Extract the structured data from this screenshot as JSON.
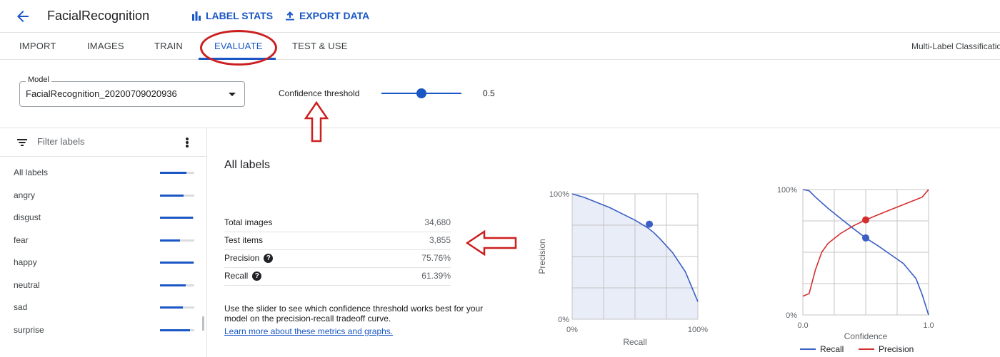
{
  "header": {
    "back_icon": "arrow-left-icon",
    "title": "FacialRecognition",
    "label_stats": "LABEL STATS",
    "export_data": "EXPORT DATA",
    "accent_color": "#1a57c4"
  },
  "tabs": {
    "items": [
      {
        "label": "IMPORT"
      },
      {
        "label": "IMAGES"
      },
      {
        "label": "TRAIN"
      },
      {
        "label": "EVALUATE",
        "active": true
      },
      {
        "label": "TEST & USE"
      }
    ],
    "right_text": "Multi-Label Classification"
  },
  "controls": {
    "model_label": "Model",
    "model_value": "FacialRecognition_20200709020936",
    "confidence_label": "Confidence threshold",
    "confidence_value": "0.5",
    "confidence_fraction": 0.5
  },
  "sidebar": {
    "filter_placeholder": "Filter labels",
    "labels": [
      {
        "name": "All labels",
        "score": 0.78
      },
      {
        "name": "angry",
        "score": 0.68
      },
      {
        "name": "disgust",
        "score": 0.96
      },
      {
        "name": "fear",
        "score": 0.58
      },
      {
        "name": "happy",
        "score": 0.98
      },
      {
        "name": "neutral",
        "score": 0.74
      },
      {
        "name": "sad",
        "score": 0.66
      },
      {
        "name": "surprise",
        "score": 0.88
      }
    ]
  },
  "main": {
    "title": "All labels",
    "metrics": [
      {
        "name": "Total images",
        "value": "34,680",
        "help": false
      },
      {
        "name": "Test items",
        "value": "3,855",
        "help": false
      },
      {
        "name": "Precision",
        "value": "75.76%",
        "help": true
      },
      {
        "name": "Recall",
        "value": "61.39%",
        "help": true
      }
    ],
    "description": "Use the slider to see which confidence threshold works best for your model on the precision-recall tradeoff curve.",
    "link": "Learn more about these metrics and graphs."
  },
  "chart_data": [
    {
      "type": "area",
      "xlabel": "Recall",
      "ylabel": "Precision",
      "x_ticks": [
        "0%",
        "100%"
      ],
      "y_ticks": [
        "0%",
        "100%"
      ],
      "xlim": [
        0,
        1
      ],
      "ylim": [
        0,
        1
      ],
      "grid": true,
      "series": [
        {
          "x": [
            0.0,
            0.1,
            0.2,
            0.3,
            0.4,
            0.5,
            0.6,
            0.65,
            0.7,
            0.8,
            0.9,
            0.95,
            1.0
          ],
          "y": [
            1.0,
            0.97,
            0.93,
            0.89,
            0.84,
            0.79,
            0.73,
            0.69,
            0.64,
            0.53,
            0.38,
            0.26,
            0.14
          ]
        }
      ],
      "marker": {
        "x": 0.614,
        "y": 0.758
      },
      "line_color": "#3b5fc4",
      "fill_color": "#e8edf8"
    },
    {
      "type": "line",
      "xlabel": "Confidence",
      "ylabel": "",
      "x_ticks": [
        "0.0",
        "1.0"
      ],
      "y_ticks": [
        "0%",
        "100%"
      ],
      "xlim": [
        0,
        1
      ],
      "ylim": [
        0,
        1
      ],
      "grid": true,
      "legend_position": "bottom",
      "series": [
        {
          "name": "Recall",
          "color": "#3b5fc4",
          "x": [
            0.0,
            0.05,
            0.1,
            0.2,
            0.3,
            0.4,
            0.5,
            0.6,
            0.7,
            0.8,
            0.9,
            0.95,
            1.0
          ],
          "y": [
            1.0,
            0.99,
            0.94,
            0.85,
            0.77,
            0.69,
            0.614,
            0.55,
            0.48,
            0.41,
            0.29,
            0.16,
            0.0
          ]
        },
        {
          "name": "Precision",
          "color": "#d32f2f",
          "x": [
            0.0,
            0.05,
            0.1,
            0.15,
            0.2,
            0.3,
            0.4,
            0.5,
            0.6,
            0.7,
            0.8,
            0.9,
            0.95,
            1.0
          ],
          "y": [
            0.15,
            0.17,
            0.36,
            0.5,
            0.57,
            0.65,
            0.71,
            0.758,
            0.8,
            0.84,
            0.88,
            0.92,
            0.94,
            1.0
          ]
        }
      ],
      "markers": [
        {
          "series": "Precision",
          "x": 0.5,
          "y": 0.758
        },
        {
          "series": "Recall",
          "x": 0.5,
          "y": 0.614
        }
      ]
    }
  ]
}
